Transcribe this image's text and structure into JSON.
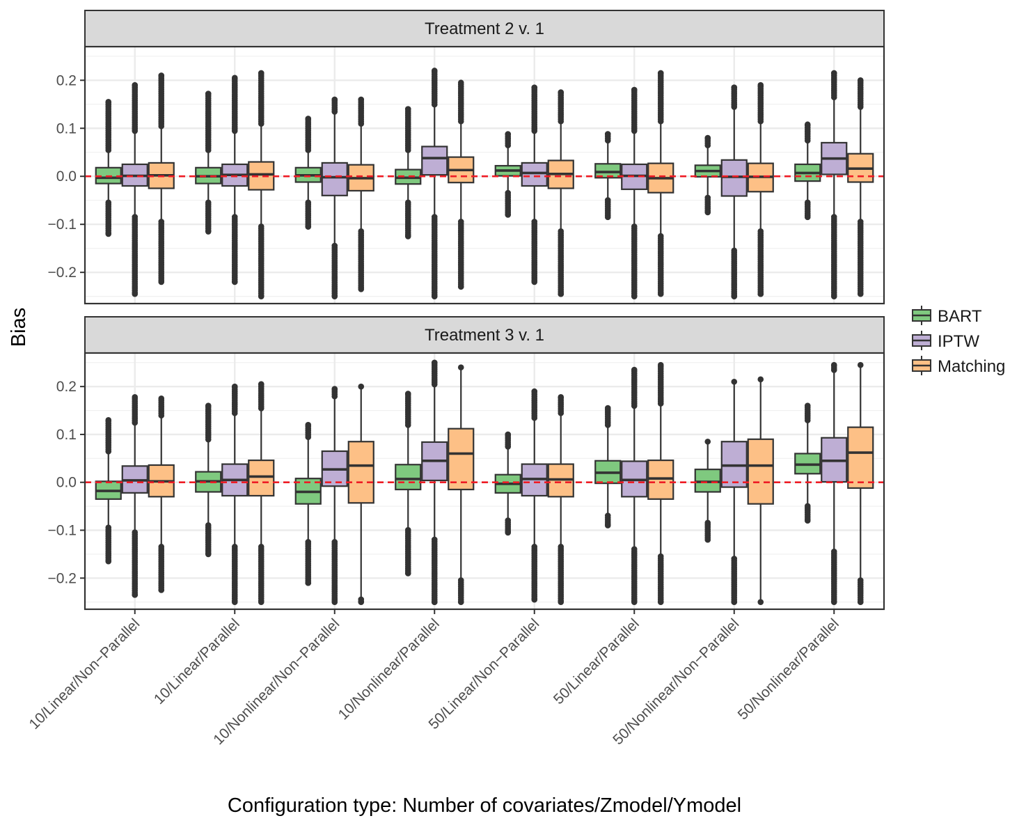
{
  "chart_data": {
    "type": "boxplot",
    "xlabel": "Configuration type: Number of covariates/Zmodel/Ymodel",
    "ylabel": "Bias",
    "ylim": [
      -0.265,
      0.27
    ],
    "yticks": [
      0.2,
      0.1,
      0.0,
      -0.1,
      -0.2
    ],
    "ytick_labels": [
      "0.2",
      "0.1",
      "0.0",
      "−0.1",
      "−0.2"
    ],
    "reference_line": 0.0,
    "reference_line_color": "#ee1c25",
    "grid": true,
    "legend_position": "right",
    "categories": [
      "10/Linear/Non−Parallel",
      "10/Linear/Parallel",
      "10/Nonlinear/Non−Parallel",
      "10/Nonlinear/Parallel",
      "50/Linear/Non−Parallel",
      "50/Linear/Parallel",
      "50/Nonlinear/Non−Parallel",
      "50/Nonlinear/Parallel"
    ],
    "series": [
      {
        "name": "BART",
        "color": "#7fc97f"
      },
      {
        "name": "IPTW",
        "color": "#beaed4"
      },
      {
        "name": "Matching",
        "color": "#fdc086"
      }
    ],
    "panels": [
      {
        "title": "Treatment 2 v. 1",
        "boxes": [
          [
            [
              -0.015,
              -0.003,
              0.018,
              -0.05,
              0.05,
              -0.12,
              0.155
            ],
            [
              -0.02,
              0.001,
              0.025,
              -0.08,
              0.09,
              -0.245,
              0.19
            ],
            [
              -0.025,
              0.002,
              0.028,
              -0.09,
              0.1,
              -0.22,
              0.21
            ]
          ],
          [
            [
              -0.015,
              0.0,
              0.018,
              -0.05,
              0.05,
              -0.115,
              0.172
            ],
            [
              -0.02,
              0.003,
              0.025,
              -0.08,
              0.09,
              -0.22,
              0.205
            ],
            [
              -0.028,
              0.004,
              0.03,
              -0.1,
              0.105,
              -0.25,
              0.215
            ]
          ],
          [
            [
              -0.012,
              0.002,
              0.018,
              -0.05,
              0.05,
              -0.105,
              0.12
            ],
            [
              -0.04,
              -0.002,
              0.028,
              -0.14,
              0.13,
              -0.25,
              0.16
            ],
            [
              -0.03,
              -0.004,
              0.024,
              -0.11,
              0.105,
              -0.235,
              0.16
            ]
          ],
          [
            [
              -0.016,
              -0.003,
              0.014,
              -0.05,
              0.05,
              -0.125,
              0.14
            ],
            [
              0.003,
              0.038,
              0.062,
              -0.08,
              0.145,
              -0.25,
              0.22
            ],
            [
              -0.013,
              0.013,
              0.04,
              -0.09,
              0.11,
              -0.23,
              0.195
            ]
          ],
          [
            [
              0.001,
              0.012,
              0.022,
              -0.03,
              0.06,
              -0.08,
              0.088
            ],
            [
              -0.02,
              0.007,
              0.028,
              -0.09,
              0.09,
              -0.22,
              0.185
            ],
            [
              -0.025,
              0.005,
              0.033,
              -0.11,
              0.11,
              -0.245,
              0.175
            ]
          ],
          [
            [
              -0.003,
              0.009,
              0.026,
              -0.045,
              0.07,
              -0.085,
              0.088
            ],
            [
              -0.027,
              0.001,
              0.025,
              -0.1,
              0.09,
              -0.25,
              0.18
            ],
            [
              -0.034,
              -0.004,
              0.027,
              -0.12,
              0.11,
              -0.245,
              0.215
            ]
          ],
          [
            [
              -0.001,
              0.011,
              0.023,
              -0.04,
              0.06,
              -0.075,
              0.08
            ],
            [
              -0.041,
              -0.001,
              0.034,
              -0.15,
              0.14,
              -0.25,
              0.185
            ],
            [
              -0.032,
              -0.001,
              0.027,
              -0.11,
              0.11,
              -0.245,
              0.19
            ]
          ],
          [
            [
              -0.01,
              0.007,
              0.025,
              -0.05,
              0.07,
              -0.085,
              0.108
            ],
            [
              0.004,
              0.037,
              0.07,
              -0.08,
              0.16,
              -0.25,
              0.215
            ],
            [
              -0.012,
              0.016,
              0.047,
              -0.09,
              0.14,
              -0.245,
              0.2
            ]
          ]
        ]
      },
      {
        "title": "Treatment 3 v. 1",
        "boxes": [
          [
            [
              -0.035,
              -0.018,
              0.002,
              -0.09,
              0.06,
              -0.165,
              0.13
            ],
            [
              -0.022,
              0.004,
              0.034,
              -0.1,
              0.12,
              -0.235,
              0.178
            ],
            [
              -0.03,
              0.002,
              0.036,
              -0.13,
              0.135,
              -0.225,
              0.175
            ]
          ],
          [
            [
              -0.02,
              0.002,
              0.022,
              -0.085,
              0.085,
              -0.15,
              0.16
            ],
            [
              -0.028,
              0.005,
              0.038,
              -0.13,
              0.14,
              -0.25,
              0.2
            ],
            [
              -0.028,
              0.012,
              0.046,
              -0.13,
              0.15,
              -0.25,
              0.205
            ]
          ],
          [
            [
              -0.045,
              -0.02,
              0.008,
              -0.12,
              0.09,
              -0.21,
              0.12
            ],
            [
              -0.008,
              0.027,
              0.065,
              -0.12,
              0.175,
              -0.25,
              0.195
            ],
            [
              -0.043,
              0.035,
              0.085,
              -0.24,
              0.2,
              -0.25,
              0.2
            ]
          ],
          [
            [
              -0.015,
              0.007,
              0.037,
              -0.095,
              0.115,
              -0.19,
              0.185
            ],
            [
              0.004,
              0.045,
              0.084,
              -0.115,
              0.2,
              -0.25,
              0.25
            ],
            [
              -0.015,
              0.06,
              0.112,
              -0.2,
              0.24,
              -0.25,
              0.24
            ]
          ],
          [
            [
              -0.022,
              -0.003,
              0.016,
              -0.075,
              0.07,
              -0.105,
              0.1
            ],
            [
              -0.028,
              0.007,
              0.038,
              -0.13,
              0.13,
              -0.245,
              0.19
            ],
            [
              -0.03,
              0.006,
              0.038,
              -0.13,
              0.14,
              -0.25,
              0.178
            ]
          ],
          [
            [
              -0.002,
              0.02,
              0.045,
              -0.065,
              0.115,
              -0.09,
              0.155
            ],
            [
              -0.03,
              0.005,
              0.044,
              -0.135,
              0.155,
              -0.25,
              0.235
            ],
            [
              -0.035,
              0.008,
              0.046,
              -0.15,
              0.16,
              -0.25,
              0.245
            ]
          ],
          [
            [
              -0.02,
              0.001,
              0.027,
              -0.08,
              0.085,
              -0.12,
              0.085
            ],
            [
              -0.01,
              0.035,
              0.085,
              -0.155,
              0.21,
              -0.25,
              0.21
            ],
            [
              -0.045,
              0.035,
              0.09,
              -0.25,
              0.215,
              -0.25,
              0.215
            ]
          ],
          [
            [
              0.018,
              0.037,
              0.06,
              -0.045,
              0.125,
              -0.08,
              0.16
            ],
            [
              0.001,
              0.045,
              0.093,
              -0.14,
              0.23,
              -0.25,
              0.245
            ],
            [
              -0.012,
              0.062,
              0.115,
              -0.2,
              0.245,
              -0.25,
              0.245
            ]
          ]
        ]
      }
    ]
  }
}
